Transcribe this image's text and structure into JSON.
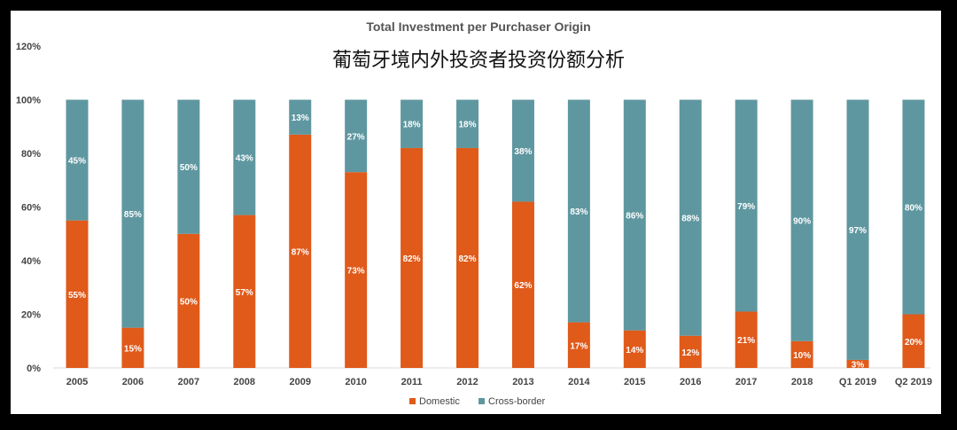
{
  "chart_data": {
    "type": "bar",
    "stacked": true,
    "title": "Total Investment per Purchaser Origin",
    "subtitle": "葡萄牙境内外投资者投资份额分析",
    "categories": [
      "2005",
      "2006",
      "2007",
      "2008",
      "2009",
      "2010",
      "2011",
      "2012",
      "2013",
      "2014",
      "2015",
      "2016",
      "2017",
      "2018",
      "Q1 2019",
      "Q2 2019"
    ],
    "series": [
      {
        "name": "Domestic",
        "color": "#E05A1A",
        "values": [
          55,
          15,
          50,
          57,
          87,
          73,
          82,
          82,
          62,
          17,
          14,
          12,
          21,
          10,
          3,
          20
        ]
      },
      {
        "name": "Cross-border",
        "color": "#5F97A0",
        "values": [
          45,
          85,
          50,
          43,
          13,
          27,
          18,
          18,
          38,
          83,
          86,
          88,
          79,
          90,
          97,
          80
        ]
      }
    ],
    "ylim": [
      0,
      120
    ],
    "yticks": [
      "0%",
      "20%",
      "40%",
      "60%",
      "80%",
      "100%",
      "120%"
    ],
    "grid": false,
    "legend": "bottom"
  }
}
